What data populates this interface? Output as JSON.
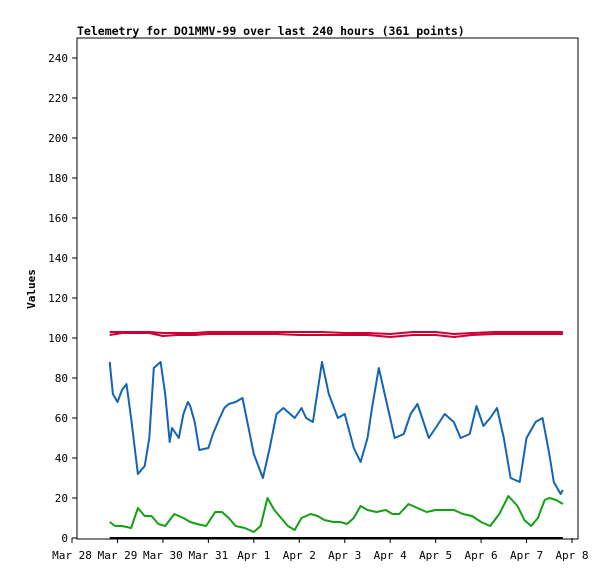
{
  "chart_data": {
    "type": "line",
    "title": "Telemetry for DO1MMV-99 over last 240 hours (361 points)",
    "ylabel": "Values",
    "xlabel": "",
    "ylim": [
      0,
      250
    ],
    "yticks": [
      0,
      20,
      40,
      60,
      80,
      100,
      120,
      140,
      160,
      180,
      200,
      220,
      240
    ],
    "xlim": [
      0,
      11
    ],
    "xticks": [
      {
        "pos": 0,
        "label": "Mar 28"
      },
      {
        "pos": 1,
        "label": "Mar 29"
      },
      {
        "pos": 2,
        "label": "Mar 30"
      },
      {
        "pos": 3,
        "label": "Mar 31"
      },
      {
        "pos": 4,
        "label": "Apr 1"
      },
      {
        "pos": 5,
        "label": "Apr 2"
      },
      {
        "pos": 6,
        "label": "Apr 3"
      },
      {
        "pos": 7,
        "label": "Apr 4"
      },
      {
        "pos": 8,
        "label": "Apr 5"
      },
      {
        "pos": 9,
        "label": "Apr 6"
      },
      {
        "pos": 10,
        "label": "Apr 7"
      },
      {
        "pos": 11,
        "label": "Apr 8"
      }
    ],
    "grid": false,
    "series": [
      {
        "color": "#cc0033",
        "x": [
          0.83,
          1.1,
          1.7,
          2.0,
          2.3,
          2.7,
          3.0,
          3.5,
          4.0,
          4.5,
          5.0,
          5.5,
          6.0,
          6.5,
          7.0,
          7.5,
          8.0,
          8.4,
          8.8,
          9.3,
          9.8,
          10.3,
          10.8
        ],
        "y": [
          101.5,
          102.5,
          102.5,
          101,
          101.5,
          101.5,
          102,
          102,
          102,
          102,
          101.5,
          101.5,
          101.5,
          101.5,
          100.5,
          101.5,
          101.5,
          100.5,
          101.5,
          102,
          102,
          102,
          102
        ],
        "y2": [
          103,
          103,
          103,
          102.5,
          102.5,
          102.5,
          103,
          103,
          103,
          103,
          103,
          103,
          102.5,
          102.5,
          102,
          103,
          103,
          102,
          102.5,
          103,
          103,
          103,
          103
        ]
      },
      {
        "color": "#1464b4",
        "x": [
          0.83,
          0.9,
          1.0,
          1.1,
          1.2,
          1.3,
          1.45,
          1.6,
          1.7,
          1.8,
          1.95,
          2.05,
          2.15,
          2.2,
          2.35,
          2.45,
          2.55,
          2.6,
          2.7,
          2.8,
          3.0,
          3.1,
          3.25,
          3.35,
          3.45,
          3.6,
          3.75,
          4.0,
          4.2,
          4.35,
          4.5,
          4.65,
          4.9,
          5.05,
          5.15,
          5.3,
          5.5,
          5.65,
          5.85,
          6.0,
          6.2,
          6.35,
          6.5,
          6.6,
          6.75,
          6.9,
          7.1,
          7.3,
          7.45,
          7.6,
          7.85,
          8.0,
          8.2,
          8.4,
          8.55,
          8.75,
          8.9,
          9.05,
          9.2,
          9.35,
          9.5,
          9.65,
          9.85,
          10.0,
          10.2,
          10.35,
          10.5,
          10.6,
          10.75,
          10.8
        ],
        "y": [
          88,
          72,
          68,
          74,
          77,
          60,
          32,
          36,
          50,
          85,
          88,
          72,
          48,
          55,
          50,
          62,
          68,
          66,
          58,
          44,
          45,
          52,
          60,
          65,
          67,
          68,
          70,
          42,
          30,
          45,
          62,
          65,
          60,
          65,
          60,
          58,
          88,
          72,
          60,
          62,
          45,
          38,
          50,
          65,
          85,
          70,
          50,
          52,
          62,
          67,
          50,
          55,
          62,
          58,
          50,
          52,
          66,
          56,
          60,
          65,
          50,
          30,
          28,
          50,
          58,
          60,
          42,
          28,
          22,
          24
        ]
      },
      {
        "color": "#14a014",
        "x": [
          0.83,
          0.95,
          1.1,
          1.3,
          1.45,
          1.6,
          1.75,
          1.9,
          2.05,
          2.25,
          2.45,
          2.6,
          2.75,
          2.95,
          3.15,
          3.3,
          3.45,
          3.6,
          3.8,
          4.0,
          4.15,
          4.3,
          4.45,
          4.6,
          4.75,
          4.9,
          5.05,
          5.25,
          5.4,
          5.55,
          5.75,
          5.9,
          6.05,
          6.2,
          6.35,
          6.5,
          6.7,
          6.9,
          7.05,
          7.2,
          7.4,
          7.6,
          7.8,
          8.0,
          8.2,
          8.4,
          8.6,
          8.8,
          9.0,
          9.2,
          9.4,
          9.6,
          9.8,
          9.95,
          10.1,
          10.25,
          10.4,
          10.5,
          10.65,
          10.8
        ],
        "y": [
          8,
          6,
          6,
          5,
          15,
          11,
          11,
          7,
          6,
          12,
          10,
          8,
          7,
          6,
          13,
          13,
          10,
          6,
          5,
          3,
          6,
          20,
          14,
          10,
          6,
          4,
          10,
          12,
          11,
          9,
          8,
          8,
          7,
          10,
          16,
          14,
          13,
          14,
          12,
          12,
          17,
          15,
          13,
          14,
          14,
          14,
          12,
          11,
          8,
          6,
          12,
          21,
          16,
          9,
          6,
          10,
          19,
          20,
          19,
          17
        ]
      },
      {
        "color": "#000000",
        "x": [
          0.83,
          10.8
        ],
        "y": [
          0,
          0
        ]
      }
    ]
  }
}
